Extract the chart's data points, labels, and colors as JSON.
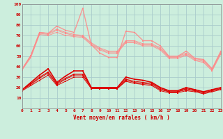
{
  "xlabel": "Vent moyen/en rafales ( km/h )",
  "xlim": [
    0,
    23
  ],
  "ylim": [
    0,
    100
  ],
  "yticks": [
    10,
    20,
    30,
    40,
    50,
    60,
    70,
    80,
    90,
    100
  ],
  "xticks": [
    0,
    1,
    2,
    3,
    4,
    5,
    6,
    7,
    8,
    9,
    10,
    11,
    12,
    13,
    14,
    15,
    16,
    17,
    18,
    19,
    20,
    21,
    22,
    23
  ],
  "background_color": "#cceedd",
  "grid_color": "#aacccc",
  "light_color": "#ff8888",
  "dark_color": "#dd0000",
  "wind_arrows": [
    "↑",
    "↑",
    "↑",
    "↗",
    "↗",
    "↗",
    "↗",
    "→",
    "→",
    "→",
    "→",
    "→",
    "→",
    "→",
    "→",
    "→",
    "→",
    "→",
    "→",
    "→",
    "→",
    "→",
    "→",
    "→"
  ],
  "series_light": [
    [
      38,
      51,
      73,
      72,
      79,
      75,
      73,
      96,
      61,
      53,
      49,
      49,
      74,
      73,
      65,
      65,
      60,
      50,
      50,
      55,
      48,
      47,
      38,
      55
    ],
    [
      38,
      51,
      73,
      72,
      76,
      73,
      71,
      70,
      63,
      58,
      55,
      55,
      65,
      65,
      62,
      62,
      58,
      50,
      50,
      53,
      48,
      46,
      38,
      54
    ],
    [
      38,
      50,
      72,
      71,
      75,
      72,
      70,
      69,
      62,
      57,
      54,
      54,
      64,
      64,
      61,
      61,
      57,
      49,
      49,
      52,
      47,
      45,
      37,
      53
    ],
    [
      37,
      49,
      71,
      70,
      73,
      70,
      69,
      68,
      61,
      56,
      53,
      53,
      63,
      63,
      60,
      60,
      56,
      48,
      48,
      51,
      46,
      44,
      36,
      52
    ]
  ],
  "series_dark": [
    [
      18,
      25,
      32,
      38,
      25,
      31,
      36,
      36,
      20,
      20,
      20,
      20,
      30,
      28,
      27,
      25,
      20,
      17,
      17,
      20,
      18,
      16,
      18,
      20
    ],
    [
      18,
      24,
      30,
      35,
      24,
      29,
      33,
      33,
      20,
      20,
      20,
      20,
      28,
      26,
      25,
      24,
      19,
      16,
      16,
      19,
      17,
      15,
      17,
      19
    ],
    [
      18,
      23,
      29,
      34,
      23,
      28,
      32,
      32,
      20,
      20,
      20,
      19,
      27,
      25,
      24,
      23,
      18,
      16,
      16,
      18,
      17,
      15,
      17,
      19
    ],
    [
      17,
      22,
      27,
      32,
      22,
      26,
      30,
      30,
      19,
      19,
      19,
      19,
      26,
      24,
      23,
      22,
      17,
      15,
      15,
      17,
      16,
      14,
      16,
      18
    ]
  ]
}
